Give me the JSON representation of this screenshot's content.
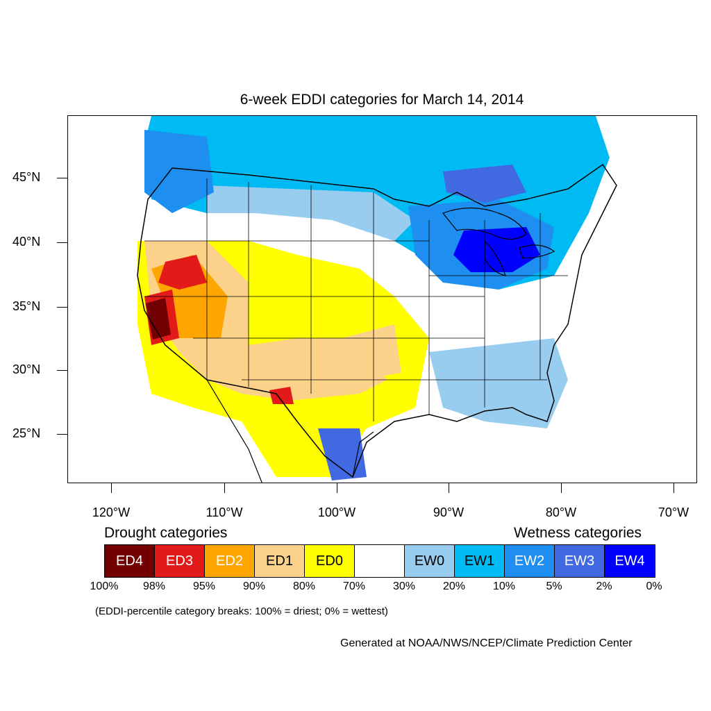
{
  "title": "6-week EDDI categories for March 14, 2014",
  "map": {
    "lat_labels": [
      "45°N",
      "40°N",
      "35°N",
      "30°N",
      "25°N"
    ],
    "lon_labels": [
      "120°W",
      "110°W",
      "100°W",
      "90°W",
      "80°W",
      "70°W"
    ],
    "region_colors": {
      "white": "#ffffff",
      "ew0": "#99cdef",
      "ew1": "#00bbf3",
      "ew2": "#1e8ff0",
      "ew3": "#4169e1",
      "ew4": "#0000ff",
      "ed0": "#ffff00",
      "ed1": "#fcd28a",
      "ed2": "#ffa500",
      "ed3": "#e21a1a",
      "ed4": "#730000"
    }
  },
  "legend": {
    "drought_heading": "Drought categories",
    "wetness_heading": "Wetness categories",
    "categories": [
      {
        "label": "ED4",
        "color": "#730000",
        "text_color": "#ffffff"
      },
      {
        "label": "ED3",
        "color": "#e21a1a",
        "text_color": "#ffffff"
      },
      {
        "label": "ED2",
        "color": "#ffa500",
        "text_color": "#ffffff"
      },
      {
        "label": "ED1",
        "color": "#fcd28a",
        "text_color": "#000000"
      },
      {
        "label": "ED0",
        "color": "#ffff00",
        "text_color": "#000000"
      },
      {
        "label": "",
        "color": "#ffffff",
        "text_color": "#000000"
      },
      {
        "label": "EW0",
        "color": "#99cdef",
        "text_color": "#000000"
      },
      {
        "label": "EW1",
        "color": "#00bbf3",
        "text_color": "#000000"
      },
      {
        "label": "EW2",
        "color": "#1e8ff0",
        "text_color": "#ffffff"
      },
      {
        "label": "EW3",
        "color": "#4169e1",
        "text_color": "#ffffff"
      },
      {
        "label": "EW4",
        "color": "#0000ff",
        "text_color": "#ffffff"
      }
    ],
    "breaks": [
      "100%",
      "98%",
      "95%",
      "90%",
      "80%",
      "70%",
      "30%",
      "20%",
      "10%",
      "5%",
      "2%",
      "0%"
    ]
  },
  "footnote": "(EDDI-percentile category breaks: 100% = driest; 0% = wettest)",
  "credit": "Generated at NOAA/NWS/NCEP/Climate Prediction Center"
}
